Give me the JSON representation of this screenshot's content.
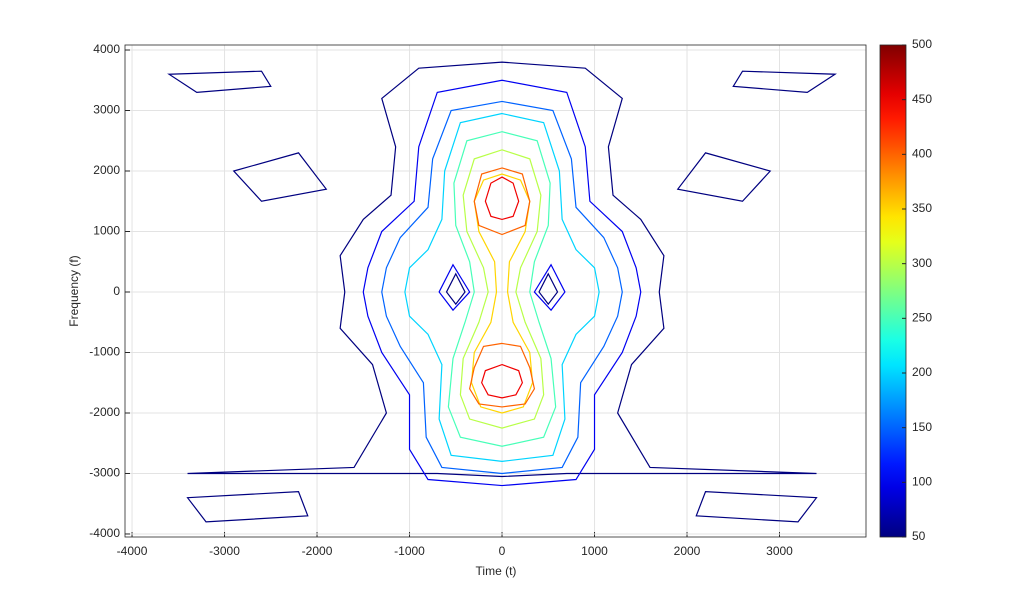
{
  "chart_data": {
    "type": "contour",
    "xlabel": "Time (t)",
    "ylabel": "Frequency (f)",
    "xlim": [
      -4076,
      3935
    ],
    "ylim": [
      -4050,
      4083
    ],
    "xticks": [
      -4000,
      -3000,
      -2000,
      -1000,
      0,
      1000,
      2000,
      3000
    ],
    "yticks": [
      -4000,
      -3000,
      -2000,
      -1000,
      0,
      1000,
      2000,
      3000,
      4000
    ],
    "grid": true,
    "colormap": "jet",
    "clim": [
      50,
      500
    ],
    "colorbar_ticks": [
      50,
      100,
      150,
      200,
      250,
      300,
      350,
      400,
      450,
      500
    ],
    "contours": [
      {
        "level": 50,
        "points": [
          [
            0,
            3800
          ],
          [
            900,
            3700
          ],
          [
            1300,
            3200
          ],
          [
            1150,
            2400
          ],
          [
            1200,
            1600
          ],
          [
            1500,
            1200
          ],
          [
            1750,
            600
          ],
          [
            1700,
            0
          ],
          [
            1750,
            -600
          ],
          [
            1400,
            -1200
          ],
          [
            1250,
            -2000
          ],
          [
            1600,
            -2900
          ],
          [
            3400,
            -3000
          ],
          [
            700,
            -3000
          ],
          [
            0,
            -3050
          ],
          [
            -700,
            -3000
          ],
          [
            -3400,
            -3000
          ],
          [
            -1600,
            -2900
          ],
          [
            -1250,
            -2000
          ],
          [
            -1400,
            -1200
          ],
          [
            -1750,
            -600
          ],
          [
            -1700,
            0
          ],
          [
            -1750,
            600
          ],
          [
            -1500,
            1200
          ],
          [
            -1200,
            1600
          ],
          [
            -1150,
            2400
          ],
          [
            -1300,
            3200
          ],
          [
            -900,
            3700
          ]
        ]
      },
      {
        "level": 100,
        "points": [
          [
            0,
            3500
          ],
          [
            700,
            3300
          ],
          [
            900,
            2400
          ],
          [
            950,
            1500
          ],
          [
            1300,
            1000
          ],
          [
            1450,
            400
          ],
          [
            1500,
            0
          ],
          [
            1450,
            -400
          ],
          [
            1300,
            -1000
          ],
          [
            1000,
            -1700
          ],
          [
            1000,
            -2600
          ],
          [
            800,
            -3100
          ],
          [
            0,
            -3200
          ],
          [
            -800,
            -3100
          ],
          [
            -1000,
            -2600
          ],
          [
            -1000,
            -1700
          ],
          [
            -1300,
            -1000
          ],
          [
            -1450,
            -400
          ],
          [
            -1500,
            0
          ],
          [
            -1450,
            400
          ],
          [
            -1300,
            1000
          ],
          [
            -950,
            1500
          ],
          [
            -900,
            2400
          ],
          [
            -700,
            3300
          ]
        ]
      },
      {
        "level": 150,
        "points": [
          [
            0,
            3150
          ],
          [
            550,
            3000
          ],
          [
            750,
            2200
          ],
          [
            800,
            1400
          ],
          [
            1100,
            900
          ],
          [
            1250,
            400
          ],
          [
            1300,
            0
          ],
          [
            1250,
            -400
          ],
          [
            1100,
            -900
          ],
          [
            850,
            -1500
          ],
          [
            820,
            -2400
          ],
          [
            650,
            -2900
          ],
          [
            0,
            -3000
          ],
          [
            -650,
            -2900
          ],
          [
            -820,
            -2400
          ],
          [
            -850,
            -1500
          ],
          [
            -1100,
            -900
          ],
          [
            -1250,
            -400
          ],
          [
            -1300,
            0
          ],
          [
            -1250,
            400
          ],
          [
            -1100,
            900
          ],
          [
            -800,
            1400
          ],
          [
            -750,
            2200
          ],
          [
            -550,
            3000
          ]
        ]
      },
      {
        "level": 200,
        "points": [
          [
            0,
            2950
          ],
          [
            450,
            2800
          ],
          [
            620,
            2000
          ],
          [
            650,
            1200
          ],
          [
            800,
            700
          ],
          [
            1000,
            400
          ],
          [
            1050,
            0
          ],
          [
            1000,
            -400
          ],
          [
            800,
            -700
          ],
          [
            650,
            -1200
          ],
          [
            680,
            -2100
          ],
          [
            550,
            -2700
          ],
          [
            0,
            -2800
          ],
          [
            -550,
            -2700
          ],
          [
            -680,
            -2100
          ],
          [
            -650,
            -1200
          ],
          [
            -800,
            -700
          ],
          [
            -1000,
            -400
          ],
          [
            -1050,
            0
          ],
          [
            -1000,
            400
          ],
          [
            -800,
            700
          ],
          [
            -650,
            1200
          ],
          [
            -620,
            2000
          ],
          [
            -450,
            2800
          ]
        ]
      },
      {
        "level": 250,
        "points": [
          [
            0,
            2650
          ],
          [
            380,
            2500
          ],
          [
            520,
            1800
          ],
          [
            500,
            1100
          ],
          [
            350,
            500
          ],
          [
            300,
            0
          ],
          [
            400,
            -500
          ],
          [
            530,
            -1100
          ],
          [
            580,
            -1900
          ],
          [
            450,
            -2400
          ],
          [
            0,
            -2550
          ],
          [
            -450,
            -2400
          ],
          [
            -580,
            -1900
          ],
          [
            -530,
            -1100
          ],
          [
            -400,
            -500
          ],
          [
            -300,
            0
          ],
          [
            -350,
            500
          ],
          [
            -500,
            1100
          ],
          [
            -520,
            1800
          ],
          [
            -380,
            2500
          ]
        ]
      },
      {
        "level": 300,
        "points": [
          [
            0,
            2350
          ],
          [
            300,
            2200
          ],
          [
            420,
            1600
          ],
          [
            380,
            1000
          ],
          [
            200,
            400
          ],
          [
            150,
            0
          ],
          [
            250,
            -500
          ],
          [
            420,
            -1100
          ],
          [
            450,
            -1700
          ],
          [
            350,
            -2100
          ],
          [
            0,
            -2250
          ],
          [
            -350,
            -2100
          ],
          [
            -450,
            -1700
          ],
          [
            -420,
            -1100
          ],
          [
            -250,
            -500
          ],
          [
            -150,
            0
          ],
          [
            -200,
            400
          ],
          [
            -380,
            1000
          ],
          [
            -420,
            1600
          ],
          [
            -300,
            2200
          ]
        ]
      },
      {
        "level": 350,
        "points": [
          [
            0,
            1950
          ],
          [
            200,
            1850
          ],
          [
            300,
            1500
          ],
          [
            250,
            1000
          ],
          [
            80,
            500
          ],
          [
            60,
            0
          ],
          [
            120,
            -500
          ],
          [
            300,
            -1000
          ],
          [
            330,
            -1500
          ],
          [
            230,
            -1900
          ],
          [
            0,
            -2000
          ],
          [
            -230,
            -1900
          ],
          [
            -330,
            -1500
          ],
          [
            -300,
            -1000
          ],
          [
            -120,
            -500
          ],
          [
            -60,
            0
          ],
          [
            -80,
            500
          ],
          [
            -250,
            1000
          ],
          [
            -300,
            1500
          ],
          [
            -200,
            1850
          ]
        ]
      },
      {
        "level": 400,
        "points": [
          [
            0,
            2050
          ],
          [
            220,
            1950
          ],
          [
            300,
            1500
          ],
          [
            250,
            1100
          ],
          [
            0,
            950
          ],
          [
            -250,
            1100
          ],
          [
            -300,
            1500
          ],
          [
            -220,
            1950
          ]
        ]
      },
      {
        "level": 400,
        "points": [
          [
            0,
            -850
          ],
          [
            200,
            -900
          ],
          [
            300,
            -1250
          ],
          [
            350,
            -1600
          ],
          [
            250,
            -1850
          ],
          [
            0,
            -1900
          ],
          [
            -250,
            -1850
          ],
          [
            -350,
            -1600
          ],
          [
            -300,
            -1250
          ],
          [
            -200,
            -900
          ]
        ]
      },
      {
        "level": 450,
        "points": [
          [
            0,
            1900
          ],
          [
            120,
            1800
          ],
          [
            180,
            1500
          ],
          [
            120,
            1250
          ],
          [
            0,
            1200
          ],
          [
            -120,
            1250
          ],
          [
            -180,
            1500
          ],
          [
            -120,
            1800
          ]
        ]
      },
      {
        "level": 450,
        "points": [
          [
            0,
            -1200
          ],
          [
            180,
            -1300
          ],
          [
            220,
            -1500
          ],
          [
            150,
            -1700
          ],
          [
            0,
            -1750
          ],
          [
            -150,
            -1700
          ],
          [
            -220,
            -1500
          ],
          [
            -180,
            -1300
          ]
        ]
      },
      {
        "level": 100,
        "points": [
          [
            -530,
            450
          ],
          [
            -350,
            0
          ],
          [
            -530,
            -300
          ],
          [
            -680,
            0
          ]
        ]
      },
      {
        "level": 100,
        "points": [
          [
            530,
            450
          ],
          [
            680,
            0
          ],
          [
            530,
            -300
          ],
          [
            350,
            0
          ]
        ]
      },
      {
        "level": 50,
        "points": [
          [
            -500,
            300
          ],
          [
            -400,
            0
          ],
          [
            -500,
            -200
          ],
          [
            -600,
            0
          ]
        ]
      },
      {
        "level": 50,
        "points": [
          [
            500,
            300
          ],
          [
            600,
            0
          ],
          [
            500,
            -200
          ],
          [
            400,
            0
          ]
        ]
      },
      {
        "level": 50,
        "points": [
          [
            -3600,
            3600
          ],
          [
            -2600,
            3650
          ],
          [
            -2500,
            3400
          ],
          [
            -3300,
            3300
          ]
        ]
      },
      {
        "level": 50,
        "points": [
          [
            3600,
            3600
          ],
          [
            3300,
            3300
          ],
          [
            2500,
            3400
          ],
          [
            2600,
            3650
          ]
        ]
      },
      {
        "level": 50,
        "points": [
          [
            -2900,
            2000
          ],
          [
            -2200,
            2300
          ],
          [
            -1900,
            1700
          ],
          [
            -2600,
            1500
          ]
        ]
      },
      {
        "level": 50,
        "points": [
          [
            2900,
            2000
          ],
          [
            2600,
            1500
          ],
          [
            1900,
            1700
          ],
          [
            2200,
            2300
          ]
        ]
      },
      {
        "level": 50,
        "points": [
          [
            -3400,
            -3400
          ],
          [
            -2200,
            -3300
          ],
          [
            -2100,
            -3700
          ],
          [
            -3200,
            -3800
          ]
        ]
      },
      {
        "level": 50,
        "points": [
          [
            3400,
            -3400
          ],
          [
            3200,
            -3800
          ],
          [
            2100,
            -3700
          ],
          [
            2200,
            -3300
          ]
        ]
      }
    ]
  }
}
